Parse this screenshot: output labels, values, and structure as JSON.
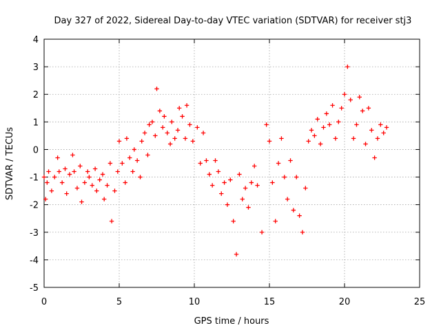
{
  "chart_data": {
    "type": "scatter",
    "title": "Day 327 of 2022, Sidereal Day-to-day VTEC variation (SDTVAR) for receiver stj3",
    "xlabel": "GPS time / hours",
    "ylabel": "SDTVAR / TECUs",
    "xlim": [
      0,
      25
    ],
    "ylim": [
      -5,
      4
    ],
    "xticks": [
      "0",
      "5",
      "10",
      "15",
      "20",
      "25"
    ],
    "yticks": [
      "-5",
      "-4",
      "-3",
      "-2",
      "-1",
      "0",
      "1",
      "2",
      "3",
      "4"
    ],
    "grid": true,
    "marker": "+",
    "color": "#ff0000",
    "series": [
      {
        "name": "SDTVAR",
        "x": [
          0.0,
          0.1,
          0.2,
          0.3,
          0.5,
          0.7,
          0.9,
          1.0,
          1.2,
          1.4,
          1.5,
          1.7,
          1.9,
          2.0,
          2.2,
          2.4,
          2.5,
          2.7,
          2.9,
          3.0,
          3.2,
          3.4,
          3.5,
          3.7,
          3.9,
          4.0,
          4.2,
          4.4,
          4.5,
          4.7,
          4.9,
          5.0,
          5.2,
          5.4,
          5.5,
          5.7,
          5.9,
          6.0,
          6.2,
          6.4,
          6.5,
          6.7,
          6.9,
          7.0,
          7.2,
          7.4,
          7.5,
          7.7,
          7.9,
          8.0,
          8.2,
          8.4,
          8.5,
          8.7,
          8.9,
          9.0,
          9.2,
          9.4,
          9.5,
          9.7,
          9.9,
          10.2,
          10.4,
          10.6,
          10.8,
          11.0,
          11.2,
          11.4,
          11.6,
          11.8,
          12.0,
          12.2,
          12.4,
          12.6,
          12.8,
          13.0,
          13.2,
          13.4,
          13.6,
          13.8,
          14.0,
          14.2,
          14.5,
          14.8,
          15.0,
          15.2,
          15.4,
          15.6,
          15.8,
          16.0,
          16.2,
          16.4,
          16.6,
          16.8,
          17.0,
          17.2,
          17.4,
          17.6,
          17.8,
          18.0,
          18.2,
          18.4,
          18.6,
          18.8,
          19.0,
          19.2,
          19.4,
          19.6,
          19.8,
          20.0,
          20.2,
          20.4,
          20.6,
          20.8,
          21.0,
          21.2,
          21.4,
          21.6,
          21.8,
          22.0,
          22.2,
          22.4,
          22.6,
          22.8
        ],
        "y": [
          -1.0,
          -1.8,
          -1.2,
          -0.8,
          -1.5,
          -1.0,
          -0.3,
          -0.8,
          -1.2,
          -0.7,
          -1.6,
          -0.9,
          -0.2,
          -0.8,
          -1.4,
          -0.6,
          -1.9,
          -1.2,
          -0.8,
          -1.0,
          -1.3,
          -0.7,
          -1.5,
          -1.1,
          -0.9,
          -1.8,
          -1.3,
          -0.5,
          -2.6,
          -1.5,
          -0.8,
          0.3,
          -0.5,
          -1.2,
          0.4,
          -0.3,
          -0.8,
          0.0,
          -0.4,
          -1.0,
          0.3,
          0.6,
          -0.2,
          0.9,
          1.0,
          0.5,
          2.2,
          1.4,
          0.8,
          1.2,
          0.6,
          0.2,
          1.0,
          0.4,
          0.7,
          1.5,
          1.2,
          0.4,
          1.6,
          0.9,
          0.3,
          0.8,
          -0.5,
          0.6,
          -0.4,
          -0.9,
          -1.3,
          -0.4,
          -0.8,
          -1.6,
          -1.2,
          -2.0,
          -1.1,
          -2.6,
          -3.8,
          -0.9,
          -1.8,
          -1.4,
          -2.1,
          -1.2,
          -0.6,
          -1.3,
          -3.0,
          0.9,
          0.3,
          -1.2,
          -2.6,
          -0.5,
          0.4,
          -1.0,
          -1.8,
          -0.4,
          -2.2,
          -1.0,
          -2.4,
          -3.0,
          -1.4,
          0.3,
          0.7,
          0.5,
          1.1,
          0.2,
          0.8,
          1.3,
          0.9,
          1.6,
          0.4,
          1.0,
          1.5,
          2.0,
          3.0,
          1.8,
          0.4,
          0.9,
          1.9,
          1.4,
          0.2,
          1.5,
          0.7,
          -0.3,
          0.4,
          0.9,
          0.6,
          0.8
        ]
      }
    ]
  }
}
